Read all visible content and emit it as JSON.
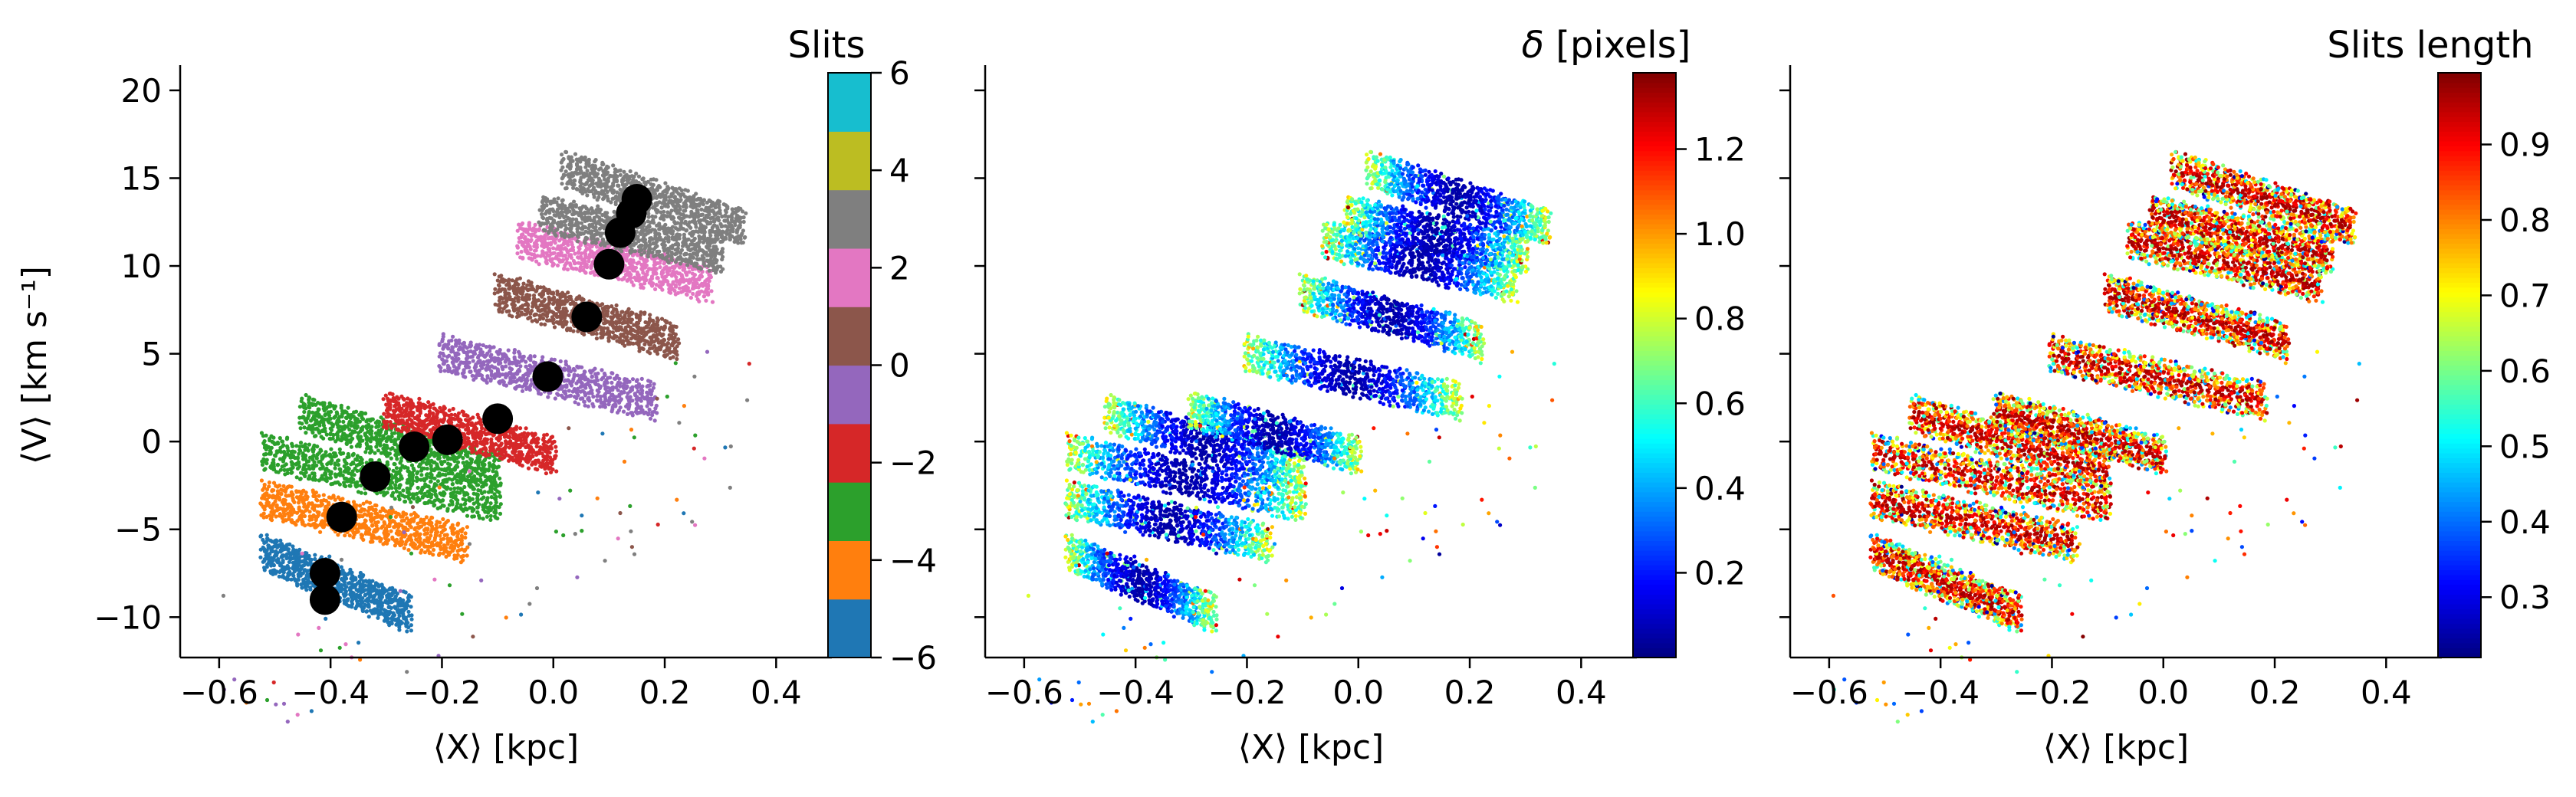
{
  "chart_data": [
    {
      "type": "scatter",
      "xlabel": "⟨X⟩ [kpc]",
      "ylabel": "⟨V⟩ [km s⁻¹]",
      "xlim": [
        -0.67,
        0.5
      ],
      "ylim": [
        -12.3,
        21
      ],
      "xticks": [
        "−0.6",
        "−0.4",
        "−0.2",
        "0.0",
        "0.2",
        "0.4"
      ],
      "xtick_values": [
        -0.6,
        -0.4,
        -0.2,
        0.0,
        0.2,
        0.4
      ],
      "yticks": [
        "−10",
        "−5",
        "0",
        "5",
        "10",
        "15",
        "20"
      ],
      "ytick_values": [
        -10,
        -5,
        0,
        5,
        10,
        15,
        20
      ],
      "color_mode": "slits",
      "colorbar": {
        "label": "Slits",
        "range": [
          -6,
          6
        ],
        "ticks": [
          "−6",
          "−4",
          "−2",
          "0",
          "2",
          "4",
          "6"
        ],
        "tick_values": [
          -6,
          -4,
          -2,
          0,
          2,
          4,
          6
        ],
        "colormap": "tab10-discrete",
        "colors": [
          "#1f77b4",
          "#ff7f0e",
          "#2ca02c",
          "#d62728",
          "#9467bd",
          "#8c564b",
          "#e377c2",
          "#7f7f7f",
          "#bcbd22",
          "#17becf"
        ]
      },
      "series": [
        {
          "x": [
            -0.41,
            -0.41,
            -0.38,
            -0.32,
            -0.25,
            -0.19,
            -0.1,
            -0.01,
            0.06,
            0.1,
            0.12,
            0.14,
            0.15
          ],
          "y": [
            -9.0,
            -7.5,
            -4.3,
            -2.0,
            -0.3,
            0.1,
            1.3,
            3.7,
            7.1,
            10.1,
            11.9,
            13.0,
            13.8
          ]
        }
      ]
    },
    {
      "type": "scatter",
      "xlabel": "⟨X⟩ [kpc]",
      "ylabel": "",
      "xlim": [
        -0.67,
        0.5
      ],
      "ylim": [
        -12.3,
        21
      ],
      "xticks": [
        "−0.6",
        "−0.4",
        "−0.2",
        "0.0",
        "0.2",
        "0.4"
      ],
      "xtick_values": [
        -0.6,
        -0.4,
        -0.2,
        0.0,
        0.2,
        0.4
      ],
      "color_mode": "delta",
      "colorbar": {
        "label": "δ [pixels]",
        "range": [
          0.0,
          1.38
        ],
        "ticks": [
          "0.2",
          "0.4",
          "0.6",
          "0.8",
          "1.0",
          "1.2"
        ],
        "tick_values": [
          0.2,
          0.4,
          0.6,
          0.8,
          1.0,
          1.2
        ],
        "colormap": "jet"
      }
    },
    {
      "type": "scatter",
      "xlabel": "⟨X⟩ [kpc]",
      "ylabel": "",
      "xlim": [
        -0.67,
        0.5
      ],
      "ylim": [
        -12.3,
        21
      ],
      "xticks": [
        "−0.6",
        "−0.4",
        "−0.2",
        "0.0",
        "0.2",
        "0.4"
      ],
      "xtick_values": [
        -0.6,
        -0.4,
        -0.2,
        0.0,
        0.2,
        0.4
      ],
      "color_mode": "length",
      "colorbar": {
        "label": "Slits length",
        "range": [
          0.22,
          0.995
        ],
        "ticks": [
          "0.3",
          "0.4",
          "0.5",
          "0.6",
          "0.7",
          "0.8",
          "0.9"
        ],
        "tick_values": [
          0.3,
          0.4,
          0.5,
          0.6,
          0.7,
          0.8,
          0.9
        ],
        "colormap": "jet"
      }
    }
  ],
  "point_cloud": {
    "bands": [
      {
        "slit": -5.5,
        "x_start": -0.52,
        "x_end": -0.26,
        "y_left": -6.3,
        "y_right": -9.8
      },
      {
        "slit": -4.5,
        "x_start": -0.52,
        "x_end": -0.16,
        "y_left": -3.3,
        "y_right": -5.8
      },
      {
        "slit": -3.5,
        "x_start": -0.52,
        "x_end": -0.1,
        "y_left": -0.6,
        "y_right": -3.5
      },
      {
        "slit": -2.5,
        "x_start": -0.45,
        "x_end": -0.1,
        "y_left": 1.6,
        "y_right": -1.7
      },
      {
        "slit": -1.5,
        "x_start": -0.3,
        "x_end": 0.0,
        "y_left": 1.8,
        "y_right": -0.8
      },
      {
        "slit": -0.5,
        "x_start": -0.2,
        "x_end": 0.18,
        "y_left": 5.0,
        "y_right": 2.3
      },
      {
        "slit": 0.5,
        "x_start": -0.1,
        "x_end": 0.22,
        "y_left": 8.5,
        "y_right": 5.7
      },
      {
        "slit": 1.5,
        "x_start": -0.06,
        "x_end": 0.28,
        "y_left": 11.5,
        "y_right": 9.0
      },
      {
        "slit": 2.5,
        "x_start": -0.02,
        "x_end": 0.3,
        "y_left": 13.0,
        "y_right": 10.6
      },
      {
        "slit": 3.5,
        "x_start": 0.02,
        "x_end": 0.34,
        "y_left": 15.5,
        "y_right": 12.2
      }
    ]
  }
}
